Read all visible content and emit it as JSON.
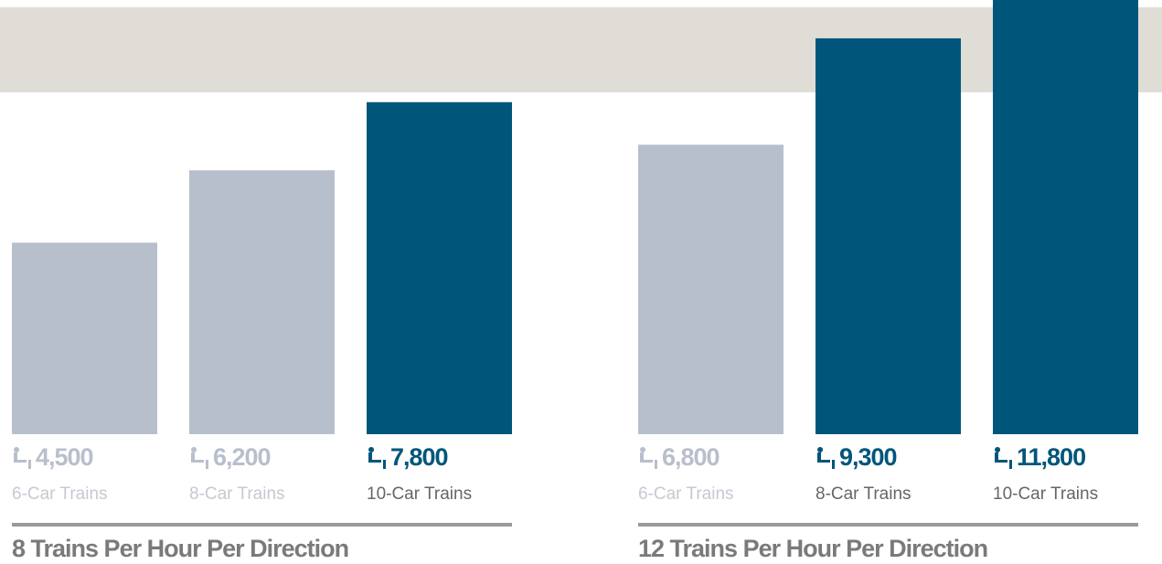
{
  "chart_data": [
    {
      "type": "bar",
      "title": "8 Trains Per Hour Per Direction",
      "categories": [
        "6-Car Trains",
        "8-Car Trains",
        "10-Car Trains"
      ],
      "values": [
        4500,
        6200,
        7800
      ],
      "value_labels": [
        "4,500",
        "6,200",
        "7,800"
      ],
      "colors": [
        "#b8bfcc",
        "#b8bfcc",
        "#00567a"
      ],
      "ylim": [
        0,
        10200
      ]
    },
    {
      "type": "bar",
      "title": "12 Trains Per Hour Per Direction",
      "categories": [
        "6-Car Trains",
        "8-Car Trains",
        "10-Car Trains"
      ],
      "values": [
        6800,
        9300,
        11800
      ],
      "value_labels": [
        "6,800",
        "9,300",
        "11,800"
      ],
      "colors": [
        "#b8bfcc",
        "#00567a",
        "#00567a"
      ],
      "ylim": [
        0,
        10200
      ]
    }
  ]
}
